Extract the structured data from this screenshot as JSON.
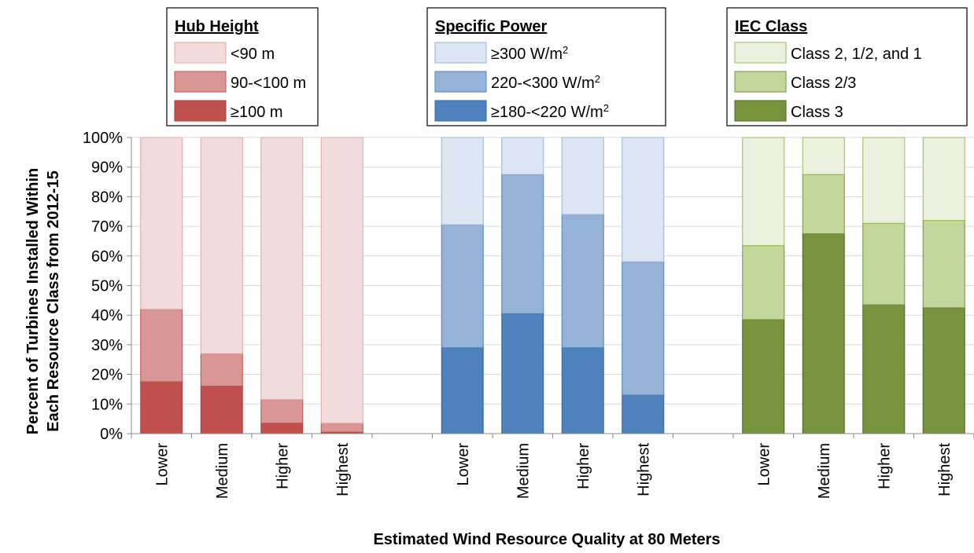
{
  "chart_data": {
    "type": "bar",
    "stacked": true,
    "xlabel": "Estimated Wind Resource Quality at 80 Meters",
    "ylabel": [
      "Percent of Turbines Installed Within",
      "Each Resource Class from 2012-15"
    ],
    "ylim": [
      0,
      100
    ],
    "yticks": [
      "0%",
      "10%",
      "20%",
      "30%",
      "40%",
      "50%",
      "60%",
      "70%",
      "80%",
      "90%",
      "100%"
    ],
    "grid": true,
    "categories": [
      "Lower",
      "Medium",
      "Higher",
      "Highest"
    ],
    "groups": [
      {
        "legend_title": "Hub Height",
        "series": [
          {
            "name": "<90 m",
            "values": [
              58,
              73,
              88.5,
              96.5
            ],
            "color": "#F2DCDB",
            "stroke": "#E6A7A6"
          },
          {
            "name": "90-<100 m",
            "values": [
              24.5,
              11,
              8,
              3
            ],
            "color": "#DA9694",
            "stroke": "#C0504D"
          },
          {
            "name": "≥100 m",
            "values": [
              17.5,
              16,
              3.5,
              0.5
            ],
            "color": "#C0504D",
            "stroke": "#A5403E"
          }
        ]
      },
      {
        "legend_title": "Specific Power",
        "series": [
          {
            "name": "≥300 W/m",
            "sup": "2",
            "values": [
              29.5,
              12.5,
              26,
              42
            ],
            "color": "#DCE6F2",
            "stroke": "#95B3D7"
          },
          {
            "name": "220-<300 W/m",
            "sup": "2",
            "values": [
              41.5,
              47,
              45,
              45
            ],
            "color": "#95B3D7",
            "stroke": "#4F81BD"
          },
          {
            "name": "≥180-<220 W/m",
            "sup": "2",
            "values": [
              29,
              40.5,
              29,
              13
            ],
            "color": "#4F81BD",
            "stroke": "#3A6599"
          }
        ]
      },
      {
        "legend_title": "IEC Class",
        "series": [
          {
            "name": "Class 2, 1/2, and 1",
            "values": [
              36.5,
              12.5,
              29,
              28
            ],
            "color": "#EBF1DE",
            "stroke": "#9BBB59"
          },
          {
            "name": "Class 2/3",
            "values": [
              25,
              20,
              27.5,
              29.5
            ],
            "color": "#C3D69B",
            "stroke": "#77933C"
          },
          {
            "name": "Class 3",
            "values": [
              38.5,
              67.5,
              43.5,
              42.5
            ],
            "color": "#77933C",
            "stroke": "#4F6228"
          }
        ]
      }
    ]
  }
}
